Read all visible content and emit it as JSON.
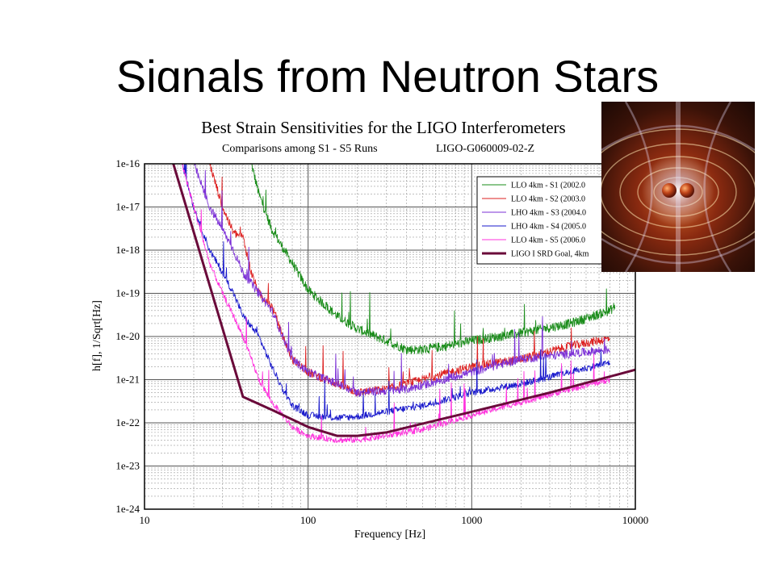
{
  "slide": {
    "title": "Signals from Neutron Stars"
  },
  "chart_data": {
    "type": "line",
    "title": "Best Strain Sensitivities for the LIGO Interferometers",
    "subtitle_left": "Comparisons among S1 - S5 Runs",
    "subtitle_right": "LIGO-G060009-02-Z",
    "xlabel": "Frequency [Hz]",
    "ylabel": "h[f], 1/Sqrt[Hz]",
    "x_scale": "log",
    "y_scale": "log",
    "xlim": [
      10,
      10000
    ],
    "ylim": [
      1e-24,
      1e-16
    ],
    "x_ticks": [
      10,
      100,
      1000,
      10000
    ],
    "x_tick_labels": [
      "10",
      "100",
      "1000",
      "10000"
    ],
    "y_ticks": [
      1e-16,
      1e-17,
      1e-18,
      1e-19,
      1e-20,
      1e-21,
      1e-22,
      1e-23,
      1e-24
    ],
    "y_tick_labels": [
      "1e-16",
      "1e-17",
      "1e-18",
      "1e-19",
      "1e-20",
      "1e-21",
      "1e-22",
      "1e-23",
      "1e-24"
    ],
    "grid": true,
    "legend_position": "top-right",
    "series": [
      {
        "name": "LLO 4km - S1 (2002.0",
        "color": "#1a8c1a",
        "noise": 0.22,
        "points": [
          [
            45,
            1e-16
          ],
          [
            50,
            2e-17
          ],
          [
            60,
            3e-18
          ],
          [
            80,
            5e-19
          ],
          [
            100,
            1.2e-19
          ],
          [
            150,
            3e-20
          ],
          [
            200,
            1.5e-20
          ],
          [
            300,
            8e-21
          ],
          [
            400,
            5e-21
          ],
          [
            500,
            5e-21
          ],
          [
            700,
            6e-21
          ],
          [
            1000,
            8e-21
          ],
          [
            2000,
            1.2e-20
          ],
          [
            4000,
            2e-20
          ],
          [
            7000,
            4e-20
          ],
          [
            7500,
            5e-20
          ]
        ]
      },
      {
        "name": "LLO 4km - S2 (2003.0",
        "color": "#dd2222",
        "noise": 0.2,
        "points": [
          [
            25,
            1e-16
          ],
          [
            30,
            1e-17
          ],
          [
            35,
            2.5e-18
          ],
          [
            40,
            2e-18
          ],
          [
            45,
            3e-19
          ],
          [
            50,
            1e-19
          ],
          [
            60,
            5e-20
          ],
          [
            70,
            1e-20
          ],
          [
            80,
            3e-21
          ],
          [
            100,
            1.5e-21
          ],
          [
            150,
            8e-22
          ],
          [
            200,
            5e-22
          ],
          [
            300,
            6e-22
          ],
          [
            500,
            1e-21
          ],
          [
            1000,
            2e-21
          ],
          [
            2000,
            3e-21
          ],
          [
            4000,
            6e-21
          ],
          [
            7000,
            9e-21
          ]
        ]
      },
      {
        "name": "LHO 4km - S3 (2004.0",
        "color": "#7b2fd6",
        "noise": 0.2,
        "points": [
          [
            20,
            1e-16
          ],
          [
            25,
            1e-17
          ],
          [
            30,
            3e-18
          ],
          [
            35,
            1e-18
          ],
          [
            40,
            3e-19
          ],
          [
            50,
            1e-19
          ],
          [
            60,
            4e-20
          ],
          [
            70,
            1e-20
          ],
          [
            80,
            3e-21
          ],
          [
            100,
            1.5e-21
          ],
          [
            150,
            8e-22
          ],
          [
            200,
            5e-22
          ],
          [
            400,
            6e-22
          ],
          [
            1000,
            1.5e-21
          ],
          [
            2000,
            3e-21
          ],
          [
            4000,
            4e-21
          ],
          [
            7000,
            5e-21
          ]
        ]
      },
      {
        "name": "LHO 4km - S4 (2005.0",
        "color": "#1a1acc",
        "noise": 0.16,
        "points": [
          [
            17,
            1e-16
          ],
          [
            20,
            1e-17
          ],
          [
            25,
            1e-18
          ],
          [
            30,
            3e-19
          ],
          [
            35,
            1e-19
          ],
          [
            40,
            3e-20
          ],
          [
            50,
            1e-20
          ],
          [
            60,
            2e-21
          ],
          [
            70,
            6e-22
          ],
          [
            80,
            2.5e-22
          ],
          [
            100,
            1.5e-22
          ],
          [
            150,
            1.3e-22
          ],
          [
            200,
            1.4e-22
          ],
          [
            300,
            1.8e-22
          ],
          [
            500,
            2.5e-22
          ],
          [
            1000,
            5e-22
          ],
          [
            2000,
            8e-22
          ],
          [
            4000,
            1.5e-21
          ],
          [
            7000,
            2.5e-21
          ]
        ]
      },
      {
        "name": "LLO 4km - S5 (2006.0",
        "color": "#ff33dd",
        "noise": 0.14,
        "points": [
          [
            17,
            1e-16
          ],
          [
            20,
            1e-17
          ],
          [
            25,
            5e-19
          ],
          [
            30,
            1e-19
          ],
          [
            35,
            3e-20
          ],
          [
            40,
            1e-20
          ],
          [
            50,
            1e-21
          ],
          [
            60,
            3e-22
          ],
          [
            70,
            1.5e-22
          ],
          [
            80,
            8e-23
          ],
          [
            100,
            5e-23
          ],
          [
            150,
            4e-23
          ],
          [
            200,
            4e-23
          ],
          [
            300,
            5e-23
          ],
          [
            500,
            7e-23
          ],
          [
            1000,
            1.5e-22
          ],
          [
            2000,
            3e-22
          ],
          [
            4000,
            6e-22
          ],
          [
            7000,
            1e-21
          ]
        ]
      },
      {
        "name": "LIGO I SRD Goal, 4km",
        "color": "#6a0a3a",
        "noise": 0,
        "width": 3,
        "points": [
          [
            15,
            1e-16
          ],
          [
            40,
            4e-22
          ],
          [
            60,
            2e-22
          ],
          [
            100,
            8e-23
          ],
          [
            150,
            5e-23
          ],
          [
            200,
            5e-23
          ],
          [
            300,
            6e-23
          ],
          [
            1000,
            1.8e-22
          ],
          [
            3000,
            5e-22
          ],
          [
            10000,
            1.7e-21
          ]
        ]
      }
    ]
  },
  "image": {
    "icon": "neutron-star-binary-illustration"
  }
}
